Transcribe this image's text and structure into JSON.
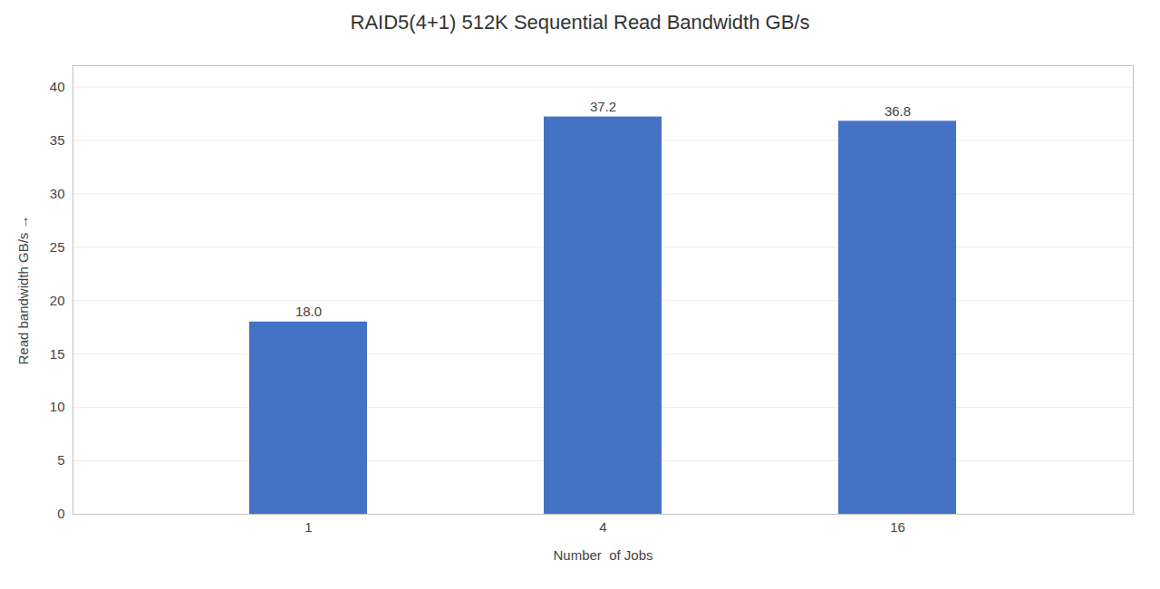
{
  "chart_data": {
    "type": "bar",
    "title": "RAID5(4+1) 512K Sequential Read Bandwidth GB/s",
    "xlabel": "Number  of Jobs",
    "ylabel": "Read bandwidth GB/s",
    "categories": [
      "1",
      "4",
      "16"
    ],
    "values": [
      18.0,
      37.2,
      36.8
    ],
    "value_labels": [
      "18.0",
      "37.2",
      "36.8"
    ],
    "color": "#4472C4",
    "ylim": [
      0,
      42
    ],
    "yticks": [
      0,
      5,
      10,
      15,
      20,
      25,
      30,
      35,
      40
    ],
    "grid": true,
    "data_labels": true
  }
}
